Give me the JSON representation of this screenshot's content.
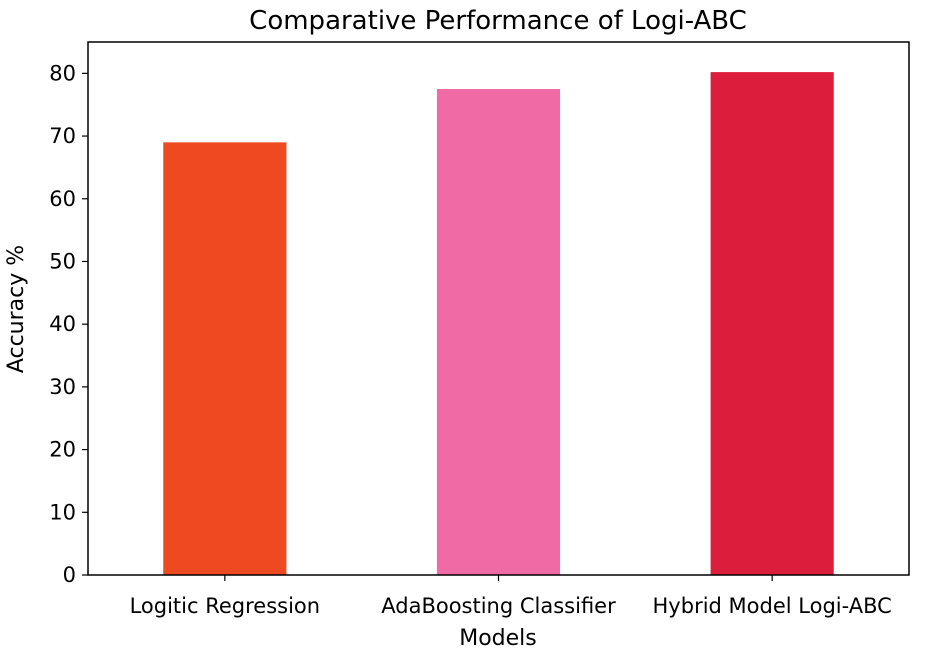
{
  "chart_data": {
    "type": "bar",
    "title": "Comparative Performance of Logi-ABC",
    "xlabel": "Models",
    "ylabel": "Accuracy %",
    "categories": [
      "Logitic Regression",
      "AdaBoosting Classifier",
      "Hybrid Model Logi-ABC"
    ],
    "values": [
      69.0,
      77.5,
      80.2
    ],
    "colors": [
      "#ee4a22",
      "#f06aa5",
      "#dc1e3c"
    ],
    "ylim": [
      0,
      85
    ],
    "yticks": [
      0,
      10,
      20,
      30,
      40,
      50,
      60,
      70,
      80
    ],
    "grid": false
  }
}
